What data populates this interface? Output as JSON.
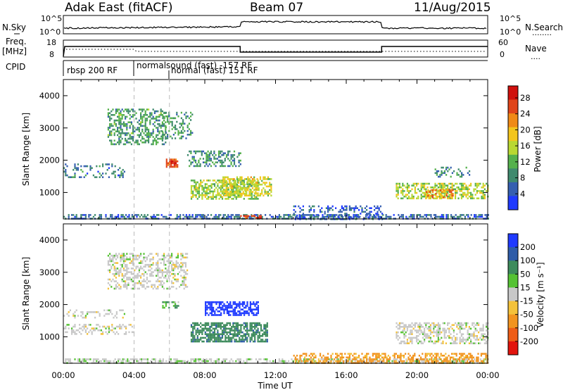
{
  "header": {
    "title_left": "Adak East (fitACF)",
    "title_center": "Beam 07",
    "title_right": "11/Aug/2015"
  },
  "top_panels": {
    "nsky_label": "N.Sky",
    "nsearch_label": "N.Search",
    "nsearch_dots": "........",
    "count_ticks_left": [
      "10^5",
      "10^0"
    ],
    "count_ticks_right": [
      "10^5",
      "10^0"
    ],
    "freq_label_1": "Freq.",
    "freq_label_2": "[MHz]",
    "freq_ticks": [
      "18",
      "8"
    ],
    "nave_label": "Nave",
    "nave_dots": "....",
    "nave_ticks": [
      "60",
      "0"
    ],
    "cpid_label": "CPID",
    "cpid_segments": [
      {
        "name": "rbsp 200 RF",
        "start_hour": 0.0,
        "end_hour": 4.0
      },
      {
        "name": "normalsound (fast) -157 RF",
        "start_hour": 4.0,
        "end_hour": 6.0
      },
      {
        "name": "normal (fast) 151 RF",
        "start_hour": 6.0,
        "end_hour": 24.0
      }
    ]
  },
  "chart_data": [
    {
      "type": "heatmap",
      "name": "power",
      "ylabel": "Slant Range [km]",
      "xlabel": "",
      "ylim": [
        180,
        4500
      ],
      "xlim_hours": [
        0,
        24
      ],
      "yticks": [
        1000,
        2000,
        3000,
        4000
      ],
      "colorbar": {
        "label": "Power [dB]",
        "ticks": [
          "4",
          "8",
          "12",
          "16",
          "20",
          "24",
          "28"
        ],
        "tick_values": [
          4,
          8,
          12,
          16,
          20,
          24,
          28
        ],
        "range": [
          0,
          31
        ],
        "colors": [
          "#1f3aff",
          "#355fb0",
          "#3f8a6e",
          "#55b14c",
          "#b9d832",
          "#f3c51c",
          "#f08a16",
          "#e0451a",
          "#d0100d"
        ]
      },
      "regions": [
        {
          "t0": 0.0,
          "t1": 24.0,
          "r0": 190,
          "r1": 330,
          "v": 6,
          "density": 0.55
        },
        {
          "t0": 2.5,
          "t1": 5.8,
          "r0": 2500,
          "r1": 3600,
          "v": 10,
          "density": 0.45
        },
        {
          "t0": 5.5,
          "t1": 7.3,
          "r0": 2700,
          "r1": 3500,
          "v": 9,
          "density": 0.35
        },
        {
          "t0": 5.8,
          "t1": 6.5,
          "r0": 1800,
          "r1": 2050,
          "v": 26,
          "density": 0.7
        },
        {
          "t0": 7.0,
          "t1": 10.0,
          "r0": 1800,
          "r1": 2300,
          "v": 9,
          "density": 0.45
        },
        {
          "t0": 7.2,
          "t1": 11.0,
          "r0": 800,
          "r1": 1400,
          "v": 14,
          "density": 0.6
        },
        {
          "t0": 9.0,
          "t1": 11.8,
          "r0": 900,
          "r1": 1500,
          "v": 17,
          "density": 0.55
        },
        {
          "t0": 0.0,
          "t1": 3.5,
          "r0": 1500,
          "r1": 1900,
          "v": 7,
          "density": 0.25
        },
        {
          "t0": 18.8,
          "t1": 24.0,
          "r0": 800,
          "r1": 1300,
          "v": 15,
          "density": 0.55
        },
        {
          "t0": 20.5,
          "t1": 22.0,
          "r0": 850,
          "r1": 1100,
          "v": 22,
          "density": 0.5
        },
        {
          "t0": 21.0,
          "t1": 23.0,
          "r0": 1500,
          "r1": 1800,
          "v": 8,
          "density": 0.3
        },
        {
          "t0": 13.0,
          "t1": 18.0,
          "r0": 190,
          "r1": 600,
          "v": 5,
          "density": 0.3
        },
        {
          "t0": 10.0,
          "t1": 11.2,
          "r0": 200,
          "r1": 300,
          "v": 28,
          "density": 0.6
        }
      ]
    },
    {
      "type": "heatmap",
      "name": "velocity",
      "ylabel": "Slant Range [km]",
      "xlabel": "Time UT",
      "ylim": [
        180,
        4500
      ],
      "xlim_hours": [
        0,
        24
      ],
      "yticks": [
        1000,
        2000,
        3000,
        4000
      ],
      "xticks": [
        "00:00",
        "04:00",
        "08:00",
        "12:00",
        "16:00",
        "20:00",
        "00:00"
      ],
      "xtick_hours": [
        0,
        4,
        8,
        12,
        16,
        20,
        24
      ],
      "colorbar": {
        "label": "Velocity [m s⁻¹]",
        "ticks": [
          "200",
          "100",
          "50",
          "15",
          "-15",
          "-50",
          "-100",
          "-200"
        ],
        "range": [
          -250,
          250
        ],
        "colors": [
          "#1f3aff",
          "#2e5ca8",
          "#3d8b5c",
          "#55c233",
          "#c8c8c8",
          "#f4c23a",
          "#f2941f",
          "#ee5d17",
          "#e2140d"
        ]
      },
      "regions": [
        {
          "t0": 0.0,
          "t1": 24.0,
          "r0": 190,
          "r1": 330,
          "v": 5,
          "density": 0.55
        },
        {
          "t0": 2.5,
          "t1": 7.0,
          "r0": 2500,
          "r1": 3600,
          "v": 0,
          "density": 0.45
        },
        {
          "t0": 7.2,
          "t1": 11.5,
          "r0": 850,
          "r1": 1450,
          "v": 60,
          "density": 0.7
        },
        {
          "t0": 8.0,
          "t1": 11.0,
          "r0": 1700,
          "r1": 2100,
          "v": 180,
          "density": 0.6
        },
        {
          "t0": 0.0,
          "t1": 4.0,
          "r0": 1100,
          "r1": 1400,
          "v": 0,
          "density": 0.35
        },
        {
          "t0": 0.0,
          "t1": 3.5,
          "r0": 1600,
          "r1": 1850,
          "v": 0,
          "density": 0.25
        },
        {
          "t0": 18.8,
          "t1": 24.0,
          "r0": 800,
          "r1": 1450,
          "v": 0,
          "density": 0.5
        },
        {
          "t0": 13.0,
          "t1": 24.0,
          "r0": 190,
          "r1": 500,
          "v": -45,
          "density": 0.5
        },
        {
          "t0": 5.5,
          "t1": 6.5,
          "r0": 1900,
          "r1": 2100,
          "v": 30,
          "density": 0.5
        }
      ]
    }
  ]
}
